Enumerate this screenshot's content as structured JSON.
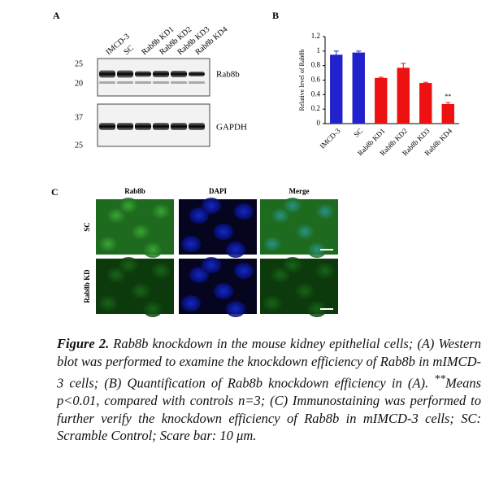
{
  "chart_data": {
    "type": "bar",
    "categories": [
      "IMCD-3",
      "SC",
      "Rab8b KD1",
      "Rab8b KD2",
      "Rab8b KD3",
      "Rab8b KD4"
    ],
    "values": [
      0.95,
      0.98,
      0.63,
      0.77,
      0.56,
      0.27
    ],
    "errors": [
      0.05,
      0.02,
      0.01,
      0.06,
      0.01,
      0.02
    ],
    "colors": [
      "#2222cc",
      "#2222cc",
      "#ee1111",
      "#ee1111",
      "#ee1111",
      "#ee1111"
    ],
    "y_label": "Relative level of Rab8b",
    "ylim": [
      0,
      1.2
    ],
    "yticks": [
      0,
      0.2,
      0.4,
      0.6,
      0.8,
      1,
      1.2
    ],
    "annotation": "**"
  },
  "panels": {
    "a": "A",
    "b": "B",
    "c": "C"
  },
  "blot": {
    "lanes": [
      "IMCD-3",
      "SC",
      "Rab8b KD1",
      "Rab8b KD2",
      "Rab8b KD3",
      "Rab8b KD4"
    ],
    "markers_top": [
      "25",
      "20"
    ],
    "markers_bottom": [
      "37",
      "25"
    ],
    "label_top": "Rab8b",
    "label_bottom": "GAPDH"
  },
  "imaging": {
    "columns": [
      "Rab8b",
      "DAPI",
      "Merge"
    ],
    "rows": [
      "SC",
      "Rab8b KD"
    ]
  },
  "caption": {
    "label": "Figure 2.",
    "text1": " Rab8b knockdown in the mouse kidney epithelial cells; (A) Western blot was performed to examine the knockdown efficiency of Rab8b in mIMCD-3 cells; (B) Quantification of Rab8b knockdown efficiency in (A). ",
    "superscript": "**",
    "text2": "Means p<0.01, compared with controls n=3; (C) Immunostaining was performed to further verify the knockdown efficiency of Rab8b in mIMCD-3 cells; SC: Scramble Control; Scare bar: 10 μm."
  }
}
